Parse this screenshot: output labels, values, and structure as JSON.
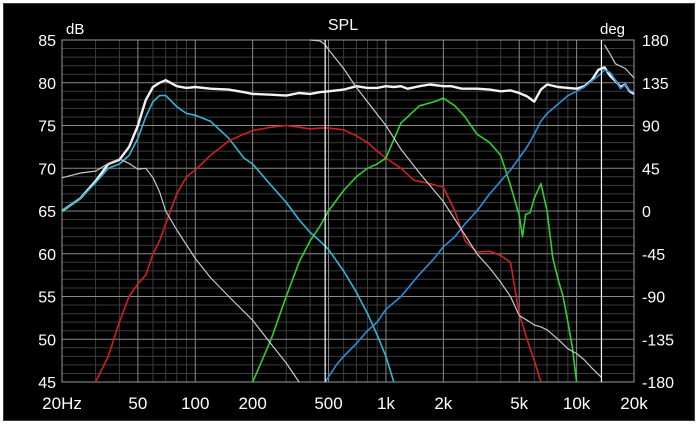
{
  "chart_data": {
    "type": "line",
    "title": "SPL",
    "y_unit_left": "dB",
    "y_unit_right": "deg",
    "x_scale": "log",
    "xlim": [
      20,
      20000
    ],
    "ylim_left": [
      45,
      85
    ],
    "ylim_right": [
      -180,
      180
    ],
    "grid": true,
    "x_ticks": [
      {
        "v": 20,
        "label": "20Hz"
      },
      {
        "v": 50,
        "label": "50"
      },
      {
        "v": 100,
        "label": "100"
      },
      {
        "v": 200,
        "label": "200"
      },
      {
        "v": 500,
        "label": "500"
      },
      {
        "v": 1000,
        "label": "1k"
      },
      {
        "v": 2000,
        "label": "2k"
      },
      {
        "v": 5000,
        "label": "5k"
      },
      {
        "v": 10000,
        "label": "10k"
      },
      {
        "v": 20000,
        "label": "20k"
      }
    ],
    "y_ticks_left": [
      85,
      80,
      75,
      70,
      65,
      60,
      55,
      50,
      45
    ],
    "y_ticks_right": [
      180,
      135,
      90,
      45,
      0,
      -45,
      -90,
      -135,
      -180
    ],
    "markers_hz": [
      480,
      13500
    ],
    "colors": {
      "background": "#000000",
      "grid_major": "#8a8a8a",
      "grid_minor": "#3c3c3c",
      "sum": "#f2f2f2",
      "woofer": "#35b6d6",
      "lowmid": "#d02020",
      "mid": "#30d030",
      "tweeter": "#2a8fdc",
      "phase": "#c8c8c8",
      "marker": "#ffffff",
      "text": "#ffffff"
    },
    "series": [
      {
        "key": "sum",
        "axis": "left",
        "width": 2.4,
        "x": [
          20,
          25,
          30,
          35,
          40,
          45,
          50,
          55,
          60,
          65,
          70,
          80,
          90,
          100,
          120,
          150,
          180,
          200,
          250,
          300,
          350,
          400,
          450,
          500,
          600,
          700,
          800,
          900,
          1000,
          1100,
          1200,
          1300,
          1500,
          1700,
          2000,
          2200,
          2500,
          3000,
          3500,
          4000,
          4500,
          5000,
          5500,
          6000,
          6500,
          7000,
          8000,
          9000,
          10000,
          11000,
          12000,
          13000,
          14000,
          15000,
          16000,
          17000,
          18000,
          19000,
          20000
        ],
        "y": [
          65,
          66.5,
          68.5,
          70.5,
          71,
          72.5,
          75,
          78,
          79.5,
          80,
          80.3,
          79.6,
          79.4,
          79.5,
          79.3,
          79.2,
          78.9,
          78.7,
          78.6,
          78.5,
          78.8,
          78.7,
          78.9,
          79,
          79.2,
          79.6,
          79.4,
          79.4,
          79.6,
          79.5,
          79.6,
          79.3,
          79.6,
          79.8,
          79.6,
          79.6,
          79.3,
          79.3,
          79.2,
          79,
          79.1,
          78.8,
          78.4,
          77.8,
          79.2,
          79.8,
          79.5,
          79.4,
          79.3,
          79.6,
          80.3,
          81.5,
          81.8,
          80.8,
          80.2,
          79.5,
          79.8,
          79.0,
          78.7
        ]
      },
      {
        "key": "woofer",
        "axis": "left",
        "width": 1.6,
        "x": [
          20,
          25,
          30,
          35,
          40,
          45,
          50,
          55,
          60,
          65,
          70,
          80,
          90,
          100,
          120,
          150,
          180,
          200,
          250,
          300,
          350,
          400,
          450,
          500,
          600,
          700,
          800,
          900,
          1000,
          1100
        ],
        "y": [
          65,
          66.5,
          68.3,
          70,
          70.5,
          71.5,
          73.5,
          76,
          77.8,
          78.5,
          78.5,
          77.2,
          76.4,
          76.2,
          75.5,
          73.5,
          71.2,
          70.5,
          68,
          66,
          64,
          62.5,
          61.5,
          60.5,
          58,
          55.5,
          53,
          50.5,
          48,
          45
        ]
      },
      {
        "key": "lowmid",
        "axis": "left",
        "width": 1.6,
        "x": [
          30,
          35,
          40,
          45,
          50,
          55,
          60,
          65,
          70,
          80,
          90,
          100,
          120,
          150,
          180,
          200,
          250,
          300,
          350,
          400,
          450,
          500,
          600,
          700,
          800,
          900,
          1000,
          1200,
          1400,
          1700,
          2000,
          2300,
          2600,
          3000,
          3500,
          4000,
          4500,
          5000,
          5500,
          6000,
          6500
        ],
        "y": [
          45,
          48,
          52,
          55,
          56.5,
          57.5,
          60,
          61.5,
          63.5,
          67,
          69,
          69.8,
          71.5,
          73.2,
          74,
          74.4,
          74.8,
          75,
          74.8,
          74.6,
          74.7,
          74.7,
          74.5,
          73.8,
          73,
          72,
          71.2,
          70,
          68.6,
          68.2,
          67.8,
          65,
          61.5,
          60.2,
          60.3,
          59.8,
          59,
          53,
          50,
          47.5,
          45
        ]
      },
      {
        "key": "mid",
        "axis": "left",
        "width": 1.6,
        "x": [
          200,
          250,
          300,
          350,
          400,
          450,
          500,
          600,
          700,
          800,
          900,
          1000,
          1200,
          1500,
          1800,
          2000,
          2300,
          2600,
          3000,
          3500,
          4000,
          4500,
          5000,
          5200,
          5400,
          5700,
          6000,
          6500,
          7000,
          7500,
          8000,
          8500,
          9000,
          9500,
          10000
        ],
        "y": [
          45,
          50,
          55,
          59,
          61.5,
          63.2,
          65,
          67.4,
          69,
          70,
          70.5,
          71.2,
          75.3,
          77.3,
          77.8,
          78.2,
          77.3,
          76,
          74,
          73,
          71.5,
          68,
          64.5,
          62,
          64.6,
          64.8,
          66.5,
          68.2,
          65,
          59.5,
          57,
          55,
          52,
          49,
          45
        ]
      },
      {
        "key": "tweeter",
        "axis": "left",
        "width": 1.6,
        "x": [
          480,
          550,
          600,
          700,
          800,
          900,
          1000,
          1200,
          1500,
          1800,
          2000,
          2300,
          2600,
          3000,
          3500,
          4000,
          4500,
          5000,
          5500,
          6000,
          6500,
          7000,
          8000,
          9000,
          10000,
          11000,
          12000,
          13000,
          14000,
          15000,
          16000,
          17000,
          18000,
          19000,
          20000
        ],
        "y": [
          45,
          47,
          48,
          49.5,
          51,
          52,
          53.5,
          55,
          57.6,
          59.5,
          60.8,
          62,
          63.5,
          65,
          67,
          68.5,
          69.8,
          71.2,
          72.5,
          74,
          75.5,
          76.4,
          77.5,
          78.5,
          79,
          79.5,
          80.2,
          80.8,
          81.5,
          81.2,
          80.3,
          79.3,
          79.8,
          79.1,
          78.9
        ]
      },
      {
        "key": "phase",
        "axis": "right",
        "width": 1.2,
        "x": [
          20,
          25,
          30,
          35,
          40,
          45,
          50,
          55,
          60,
          65,
          70,
          80,
          100,
          120,
          150,
          200,
          250,
          300,
          350,
          400,
          450,
          480,
          500,
          600,
          700,
          800,
          1000,
          1200,
          1500,
          2000,
          2500,
          3000,
          3500,
          4000,
          4500,
          5000,
          5500,
          6000,
          6500,
          7000,
          8000,
          9000,
          10000,
          11000,
          12000,
          13000,
          13500,
          14000,
          15000,
          16000,
          18000,
          20000
        ],
        "y": [
          35,
          40,
          42,
          50,
          55,
          50,
          44,
          45,
          35,
          20,
          0,
          -20,
          -50,
          -70,
          -90,
          -115,
          -140,
          -160,
          -180,
          180,
          179,
          175,
          170,
          150,
          130,
          115,
          90,
          65,
          40,
          10,
          -20,
          -45,
          -60,
          -75,
          -90,
          -110,
          -115,
          -120,
          -122,
          -125,
          -135,
          -145,
          -150,
          -157,
          -165,
          -172,
          -175,
          175,
          165,
          155,
          150,
          140
        ]
      }
    ]
  }
}
